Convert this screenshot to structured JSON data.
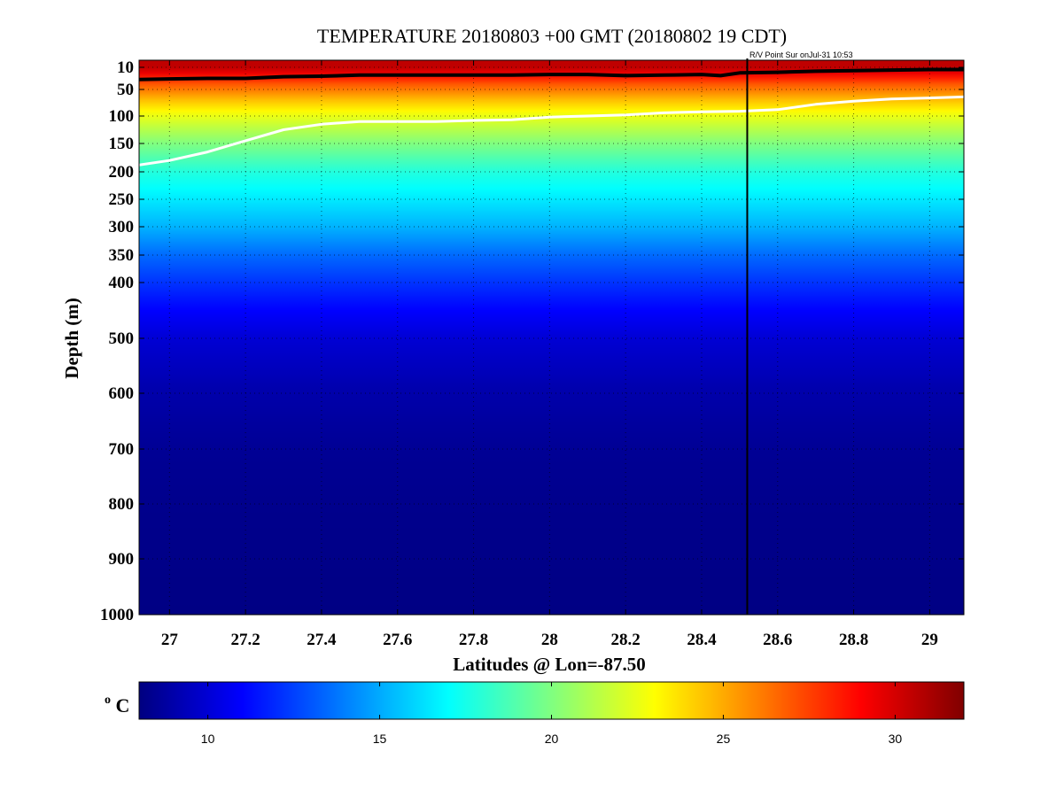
{
  "chart_data": {
    "type": "heatmap",
    "title": "TEMPERATURE 20180803 +00 GMT (20180802 19 CDT)",
    "annotation": "R/V Point Sur onJul-31 10:53",
    "xlabel": "Latitudes @ Lon=-87.50",
    "ylabel": "Depth (m)",
    "xlim": [
      26.92,
      29.09
    ],
    "ylim": [
      1000,
      10
    ],
    "x_ticks": [
      "27",
      "27.2",
      "27.4",
      "27.6",
      "27.8",
      "28",
      "28.2",
      "28.4",
      "28.6",
      "28.8",
      "29"
    ],
    "y_ticks": [
      "10",
      "50",
      "100",
      "150",
      "200",
      "250",
      "300",
      "350",
      "400",
      "500",
      "600",
      "700",
      "800",
      "900",
      "1000"
    ],
    "grid": true,
    "colormap": "jet",
    "colorbar": {
      "label": "°C",
      "label_base": "C",
      "label_sup": "o",
      "range": [
        8,
        32
      ],
      "ticks": [
        "10",
        "15",
        "20",
        "25",
        "30"
      ]
    },
    "vertical_marker": {
      "x": 28.52,
      "color": "#000000"
    },
    "isotherm_black": {
      "color": "#000000",
      "x": [
        26.92,
        27.0,
        27.1,
        27.2,
        27.3,
        27.4,
        27.5,
        27.6,
        27.7,
        27.8,
        27.9,
        28.0,
        28.1,
        28.2,
        28.3,
        28.4,
        28.45,
        28.5,
        28.6,
        28.7,
        28.8,
        28.9,
        29.0,
        29.09
      ],
      "depth": [
        32,
        31,
        30,
        30,
        27,
        26,
        24,
        24,
        24,
        24,
        24,
        23,
        23,
        25,
        24,
        23,
        25,
        20,
        19,
        17,
        16,
        15,
        14,
        14
      ]
    },
    "isotherm_white": {
      "color": "#ffffff",
      "x": [
        26.92,
        27.0,
        27.1,
        27.2,
        27.3,
        27.4,
        27.5,
        27.6,
        27.7,
        27.8,
        27.9,
        28.0,
        28.1,
        28.2,
        28.3,
        28.4,
        28.5,
        28.6,
        28.7,
        28.8,
        28.9,
        29.0,
        29.09
      ],
      "depth": [
        188,
        180,
        165,
        145,
        125,
        115,
        110,
        110,
        110,
        108,
        107,
        102,
        100,
        98,
        94,
        92,
        91,
        88,
        78,
        72,
        68,
        66,
        64
      ]
    },
    "temperature_profile": {
      "depth": [
        10,
        20,
        40,
        70,
        100,
        150,
        200,
        250,
        300,
        350,
        400,
        450,
        500,
        600,
        700,
        800,
        900,
        1000
      ],
      "temp": [
        30.5,
        29.5,
        27,
        24.5,
        22.5,
        20,
        17.8,
        16.5,
        15.2,
        13.5,
        12.2,
        11,
        10,
        9,
        8.5,
        8.3,
        8.2,
        8.1
      ]
    }
  }
}
